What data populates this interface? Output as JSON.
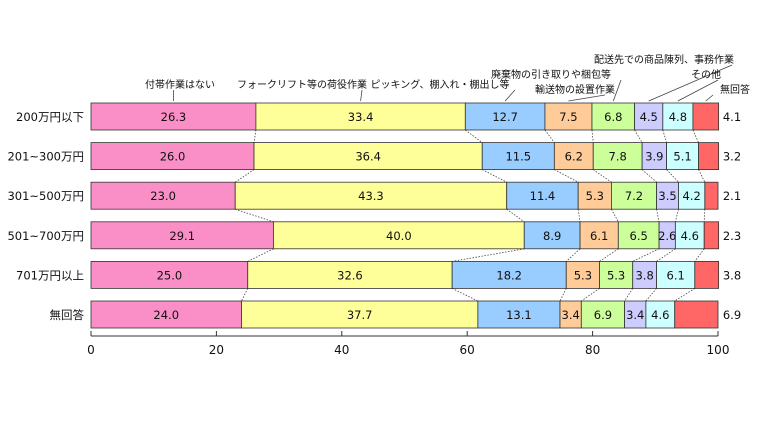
{
  "chart_data": {
    "type": "bar",
    "orientation": "horizontal",
    "stacked": "percent",
    "categories": [
      "200万円以下",
      "201~300万円",
      "301~500万円",
      "501~700万円",
      "701万円以上",
      "無回答"
    ],
    "series": [
      {
        "name": "付帯作業はない",
        "color": "#f98fc6",
        "values": [
          26.3,
          26.0,
          23.0,
          29.1,
          25.0,
          24.0
        ]
      },
      {
        "name": "フォークリフト等の荷役作業",
        "color": "#ffff99",
        "values": [
          33.4,
          36.4,
          43.3,
          40.0,
          32.6,
          37.7
        ]
      },
      {
        "name": "ピッキング、棚入れ・棚出し等",
        "color": "#99ccff",
        "values": [
          12.7,
          11.5,
          11.4,
          8.9,
          18.2,
          13.1
        ]
      },
      {
        "name": "輸送物の設置作業",
        "color": "#ffcc99",
        "values": [
          7.5,
          6.2,
          5.3,
          6.1,
          5.3,
          3.4
        ]
      },
      {
        "name": "廃棄物の引き取りや梱包等",
        "color": "#ccff99",
        "values": [
          6.8,
          7.8,
          7.2,
          6.5,
          5.3,
          6.9
        ]
      },
      {
        "name": "配送先での商品陳列、事務作業",
        "color": "#ccccff",
        "values": [
          4.5,
          3.9,
          3.5,
          2.6,
          3.8,
          3.4
        ]
      },
      {
        "name": "その他",
        "color": "#ccffff",
        "values": [
          4.8,
          5.1,
          4.2,
          4.6,
          6.1,
          4.6
        ]
      },
      {
        "name": "無回答",
        "color": "#ff6666",
        "values": [
          4.1,
          3.2,
          2.1,
          2.3,
          3.8,
          6.9
        ]
      }
    ],
    "value_labels": [
      [
        "26.3",
        "33.4",
        "12.7",
        "7.5",
        "6.8",
        "4.5",
        "4.8",
        "4.1"
      ],
      [
        "26.0",
        "36.4",
        "11.5",
        "6.2",
        "7.8",
        "3.9",
        "5.1",
        "3.2"
      ],
      [
        "23.0",
        "43.3",
        "11.4",
        "5.3",
        "7.2",
        "3.5",
        "4.2",
        "2.1"
      ],
      [
        "29.1",
        "40.0",
        "8.9",
        "6.1",
        "6.5",
        "2.6",
        "4.6",
        "2.3"
      ],
      [
        "25.0",
        "32.6",
        "18.2",
        "5.3",
        "5.3",
        "3.8",
        "6.1",
        "3.8"
      ],
      [
        "24.0",
        "37.7",
        "13.1",
        "3.4",
        "6.9",
        "3.4",
        "4.6",
        "6.9"
      ]
    ],
    "xlim": [
      0,
      100
    ],
    "xticks": [
      0,
      20,
      40,
      60,
      80,
      100
    ],
    "xtick_labels": [
      "0",
      "20",
      "40",
      "60",
      "80",
      "100"
    ],
    "title": "",
    "xlabel": "",
    "ylabel": ""
  }
}
